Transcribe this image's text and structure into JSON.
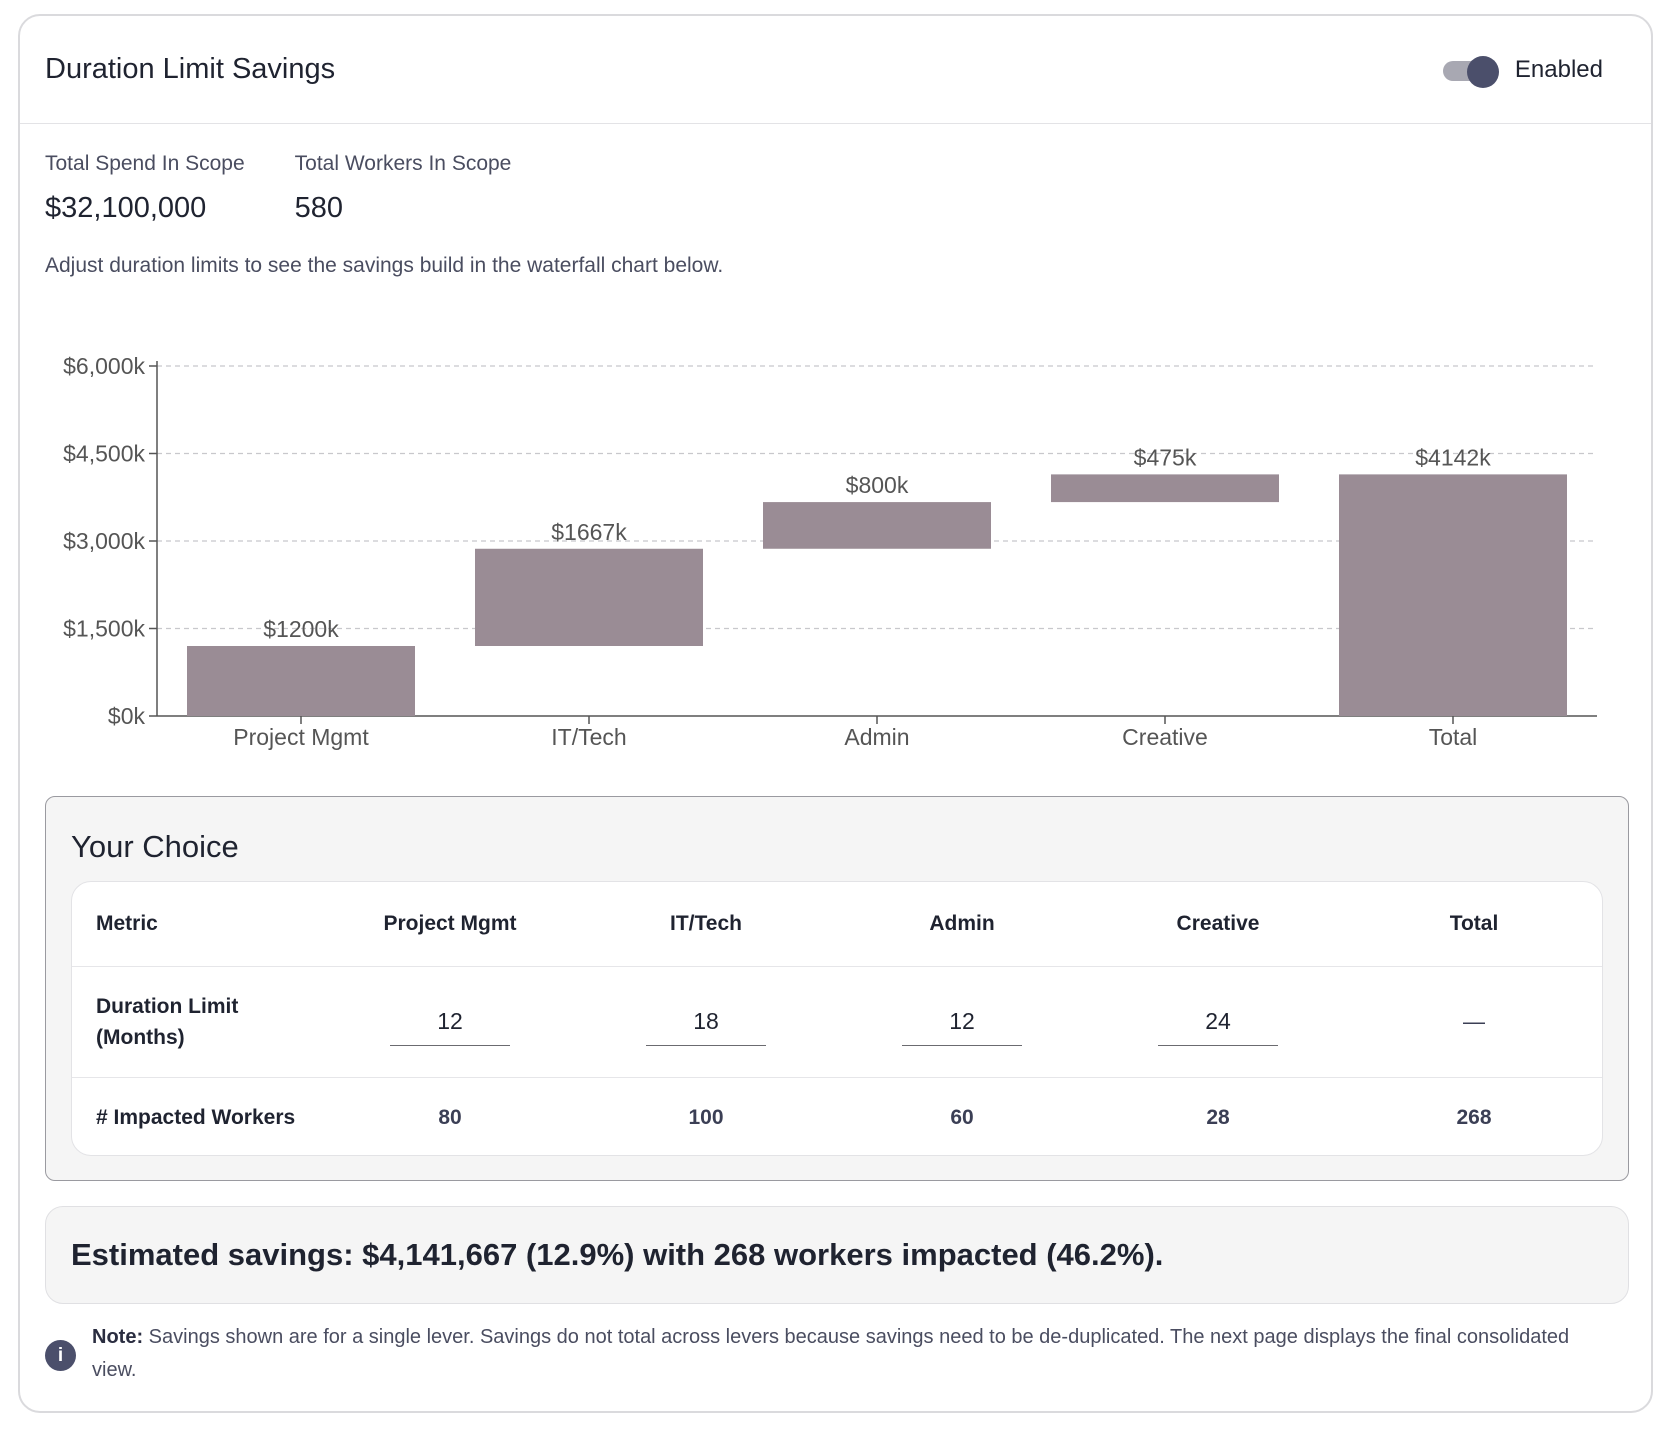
{
  "header": {
    "title": "Duration Limit Savings",
    "toggle_label": "Enabled",
    "toggle_on": true
  },
  "stats": [
    {
      "label": "Total Spend In Scope",
      "value": "$32,100,000"
    },
    {
      "label": "Total Workers In Scope",
      "value": "580"
    }
  ],
  "hint": "Adjust duration limits to see the savings build in the waterfall chart below.",
  "chart_data": {
    "type": "bar",
    "subtype": "waterfall",
    "categories": [
      "Project Mgmt",
      "IT/Tech",
      "Admin",
      "Creative",
      "Total"
    ],
    "values": [
      1200,
      1667,
      800,
      475,
      4142
    ],
    "data_labels": [
      "$1200k",
      "$1667k",
      "$800k",
      "$475k",
      "$4142k"
    ],
    "ylim": [
      0,
      6000
    ],
    "yticks": [
      0,
      1500,
      3000,
      4500,
      6000
    ],
    "ytick_labels": [
      "$0k",
      "$1,500k",
      "$3,000k",
      "$4,500k",
      "$6,000k"
    ],
    "grid": true,
    "bar_color": "#9a8c95",
    "title": "",
    "xlabel": "",
    "ylabel": ""
  },
  "choice": {
    "title": "Your Choice",
    "columns": [
      "Metric",
      "Project Mgmt",
      "IT/Tech",
      "Admin",
      "Creative",
      "Total"
    ],
    "duration_row": {
      "label_line1": "Duration Limit",
      "label_line2": "(Months)",
      "values": [
        "12",
        "18",
        "12",
        "24"
      ],
      "total": "—"
    },
    "workers_row": {
      "label": "# Impacted Workers",
      "values": [
        "80",
        "100",
        "60",
        "28"
      ],
      "total": "268"
    }
  },
  "summary": "Estimated savings: $4,141,667 (12.9%) with 268 workers impacted (46.2%).",
  "note": {
    "label": "Note:",
    "text": " Savings shown are for a single lever. Savings do not total across levers because savings need to be de-duplicated. The next page displays the final consolidated view."
  },
  "colors": {
    "accent": "#4b4f6b",
    "bar": "#9a8c95",
    "panel_bg": "#f5f5f5"
  }
}
